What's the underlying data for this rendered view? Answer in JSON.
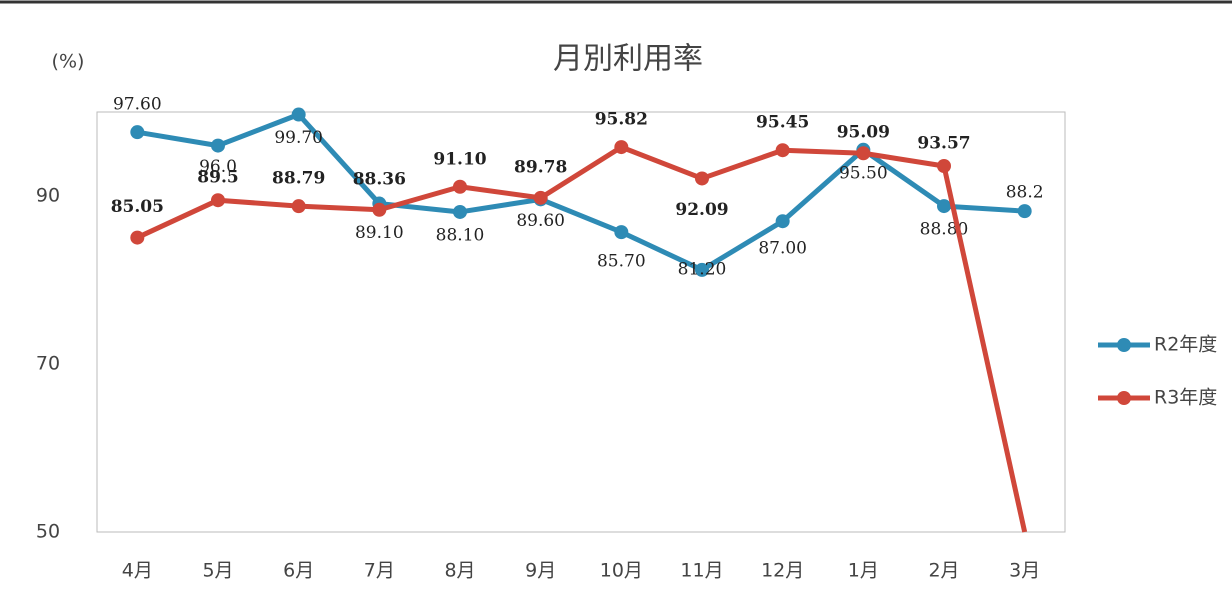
{
  "chart_data": {
    "type": "line",
    "title": "月別利用率",
    "y_unit": "(%)",
    "categories": [
      "4月",
      "5月",
      "6月",
      "7月",
      "8月",
      "9月",
      "10月",
      "11月",
      "12月",
      "1月",
      "2月",
      "3月"
    ],
    "ylim": [
      50,
      100
    ],
    "yticks": [
      50,
      70,
      90
    ],
    "series": [
      {
        "name": "R2年度",
        "color": "#2e8bb5",
        "values": [
          97.6,
          96.0,
          99.7,
          89.1,
          88.1,
          89.6,
          85.7,
          81.2,
          87.0,
          95.5,
          88.8,
          88.2
        ],
        "value_labels": [
          "97.60",
          "96.0",
          "99.70",
          "89.10",
          "88.10",
          "89.60",
          "85.70",
          "81.20",
          "87.00",
          "95.50",
          "88.80",
          "88.2"
        ]
      },
      {
        "name": "R3年度",
        "color": "#d0473a",
        "values": [
          85.05,
          89.5,
          88.79,
          88.36,
          91.1,
          89.78,
          95.82,
          92.09,
          95.45,
          95.09,
          93.57,
          50
        ],
        "value_labels": [
          "85.05",
          "89.5",
          "88.79",
          "88.36",
          "91.10",
          "89.78",
          "95.82",
          "92.09",
          "95.45",
          "95.09",
          "93.57",
          null
        ]
      }
    ]
  }
}
